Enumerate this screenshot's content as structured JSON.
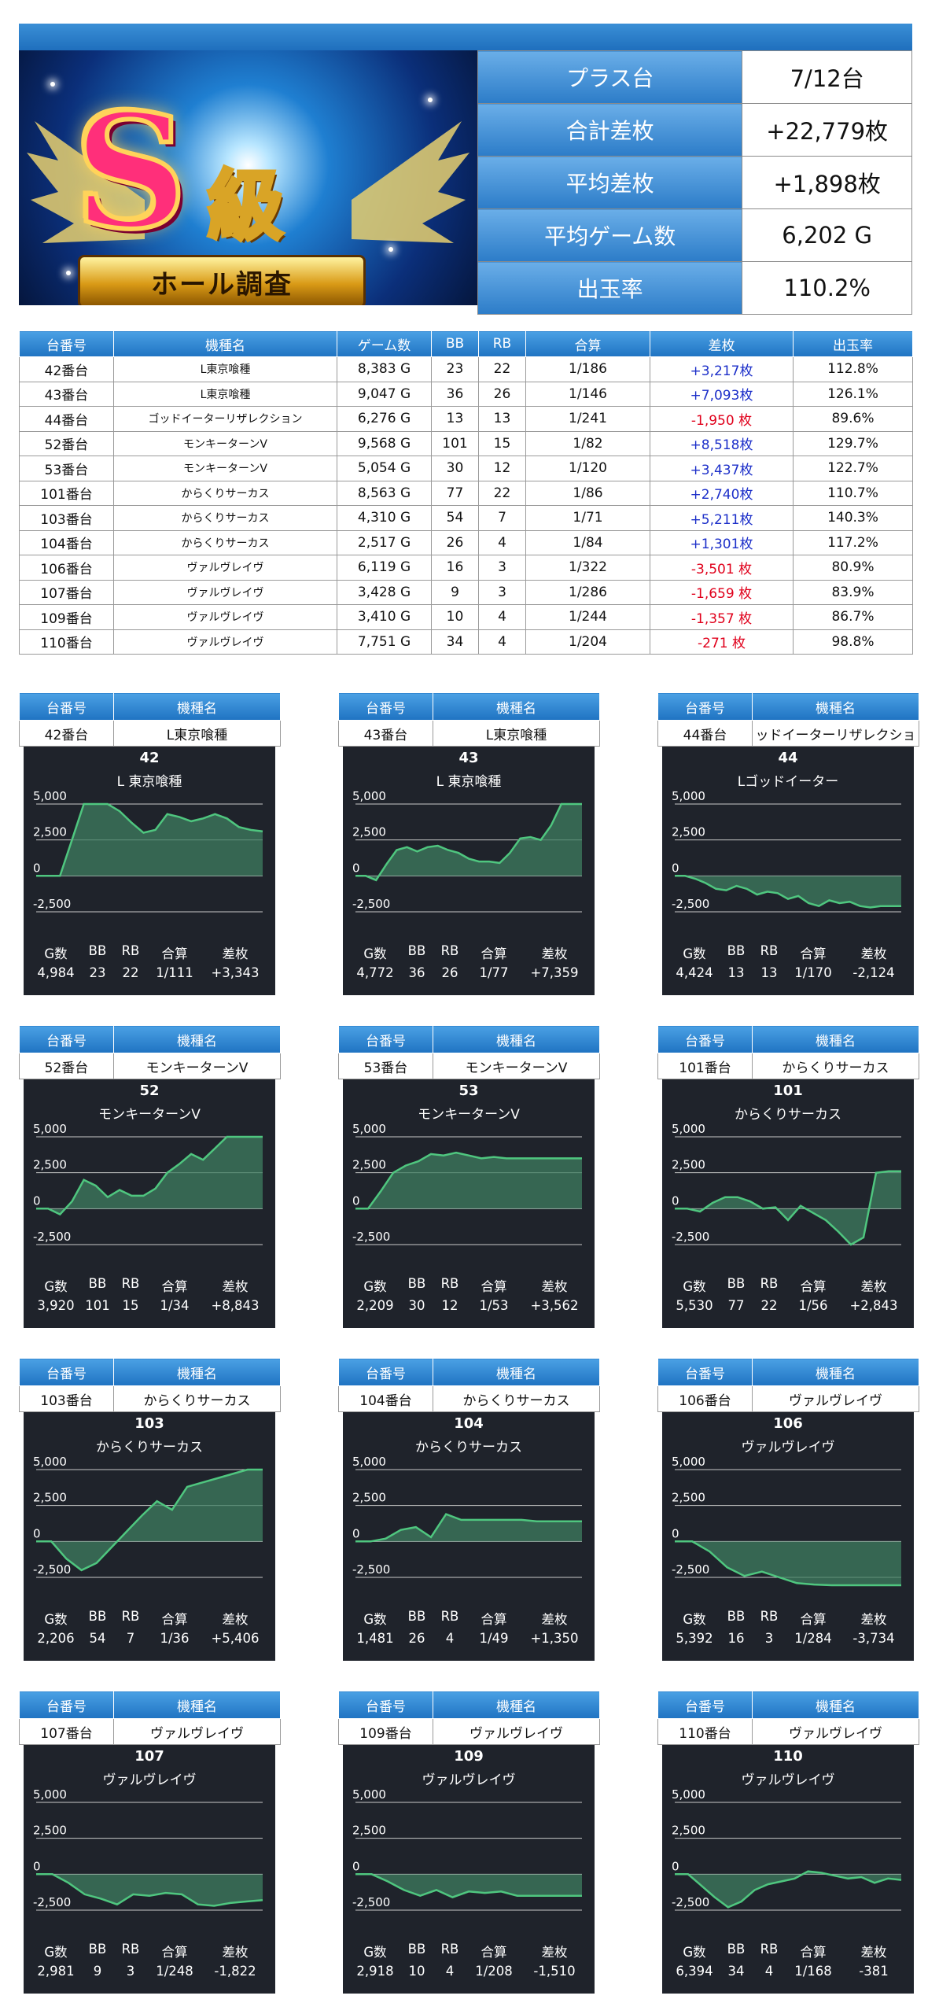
{
  "banner": {
    "main": "S",
    "kyu": "級",
    "ribbon": "ホール調査"
  },
  "summary": [
    {
      "label": "プラス台",
      "value": "7/12台"
    },
    {
      "label": "合計差枚",
      "value": "+22,779枚"
    },
    {
      "label": "平均差枚",
      "value": "+1,898枚"
    },
    {
      "label": "平均ゲーム数",
      "value": "6,202 G"
    },
    {
      "label": "出玉率",
      "value": "110.2%"
    }
  ],
  "table": {
    "headers": [
      "台番号",
      "機種名",
      "ゲーム数",
      "BB",
      "RB",
      "合算",
      "差枚",
      "出玉率"
    ],
    "rows": [
      [
        "42番台",
        "L東京喰種",
        "8,383 G",
        "23",
        "22",
        "1/186",
        "+3,217枚",
        "112.8%"
      ],
      [
        "43番台",
        "L東京喰種",
        "9,047 G",
        "36",
        "26",
        "1/146",
        "+7,093枚",
        "126.1%"
      ],
      [
        "44番台",
        "ゴッドイーターリザレクション",
        "6,276 G",
        "13",
        "13",
        "1/241",
        "-1,950 枚",
        "89.6%"
      ],
      [
        "52番台",
        "モンキーターンV",
        "9,568 G",
        "101",
        "15",
        "1/82",
        "+8,518枚",
        "129.7%"
      ],
      [
        "53番台",
        "モンキーターンV",
        "5,054 G",
        "30",
        "12",
        "1/120",
        "+3,437枚",
        "122.7%"
      ],
      [
        "101番台",
        "からくりサーカス",
        "8,563 G",
        "77",
        "22",
        "1/86",
        "+2,740枚",
        "110.7%"
      ],
      [
        "103番台",
        "からくりサーカス",
        "4,310 G",
        "54",
        "7",
        "1/71",
        "+5,211枚",
        "140.3%"
      ],
      [
        "104番台",
        "からくりサーカス",
        "2,517 G",
        "26",
        "4",
        "1/84",
        "+1,301枚",
        "117.2%"
      ],
      [
        "106番台",
        "ヴァルヴレイヴ",
        "6,119 G",
        "16",
        "3",
        "1/322",
        "-3,501 枚",
        "80.9%"
      ],
      [
        "107番台",
        "ヴァルヴレイヴ",
        "3,428 G",
        "9",
        "3",
        "1/286",
        "-1,659 枚",
        "83.9%"
      ],
      [
        "109番台",
        "ヴァルヴレイヴ",
        "3,410 G",
        "10",
        "4",
        "1/244",
        "-1,357 枚",
        "86.7%"
      ],
      [
        "110番台",
        "ヴァルヴレイヴ",
        "7,751 G",
        "34",
        "4",
        "1/204",
        "-271 枚",
        "98.8%"
      ]
    ]
  },
  "card_headers": {
    "unit": "台番号",
    "model": "機種名"
  },
  "stat_headers": [
    "G数",
    "BB",
    "RB",
    "合算",
    "差枚"
  ],
  "colors": {
    "plus": "#1c2fc9",
    "minus": "#e0001b",
    "header_blue": "#2c7cc8",
    "chart_bg": "#1f232b",
    "chart_line": "#4fc67f",
    "chart_fill": "#3f7d60"
  },
  "chart_data": [
    {
      "type": "area",
      "unit": "42番台",
      "model": "L東京喰種",
      "title": "42",
      "subtitle": "L 東京喰種",
      "ylim": [
        -2500,
        5000
      ],
      "yticks": [
        "5,000",
        "2,500",
        "0",
        "-2,500"
      ],
      "y": [
        0,
        0,
        0,
        2500,
        5000,
        5000,
        5000,
        4500,
        3700,
        3000,
        3200,
        4300,
        4100,
        3800,
        4000,
        4300,
        4000,
        3400,
        3200,
        3100
      ],
      "stats": {
        "games": "4,984",
        "bb": "23",
        "rb": "22",
        "gassan": "1/111",
        "samai": "+3,343"
      }
    },
    {
      "type": "area",
      "unit": "43番台",
      "model": "L東京喰種",
      "title": "43",
      "subtitle": "L 東京喰種",
      "ylim": [
        -2500,
        5000
      ],
      "yticks": [
        "5,000",
        "2,500",
        "0",
        "-2,500"
      ],
      "y": [
        0,
        0,
        -300,
        800,
        1800,
        2000,
        1700,
        2000,
        2100,
        1800,
        1600,
        1200,
        1000,
        1000,
        900,
        1600,
        2600,
        2700,
        2500,
        3500,
        5000,
        5000,
        5000
      ],
      "stats": {
        "games": "4,772",
        "bb": "36",
        "rb": "26",
        "gassan": "1/77",
        "samai": "+7,359"
      }
    },
    {
      "type": "area",
      "unit": "44番台",
      "model": "ッドイーターリザレクショ",
      "title": "44",
      "subtitle": "Lゴッドイーター",
      "ylim": [
        -2500,
        5000
      ],
      "yticks": [
        "5,000",
        "2,500",
        "0",
        "-2,500"
      ],
      "y": [
        0,
        0,
        -200,
        -500,
        -900,
        -1000,
        -700,
        -900,
        -1300,
        -1100,
        -1200,
        -1600,
        -1400,
        -1900,
        -2100,
        -1700,
        -1900,
        -1800,
        -2100,
        -2200,
        -2100,
        -2100,
        -2100
      ],
      "stats": {
        "games": "4,424",
        "bb": "13",
        "rb": "13",
        "gassan": "1/170",
        "samai": "-2,124"
      }
    },
    {
      "type": "area",
      "unit": "52番台",
      "model": "モンキーターンV",
      "title": "52",
      "subtitle": "モンキーターンV",
      "ylim": [
        -2500,
        5000
      ],
      "yticks": [
        "5,000",
        "2,500",
        "0",
        "-2,500"
      ],
      "y": [
        0,
        0,
        -400,
        500,
        2000,
        1600,
        800,
        1300,
        900,
        900,
        1400,
        2500,
        3100,
        3800,
        3400,
        4200,
        5000,
        5000,
        5000,
        5000
      ],
      "stats": {
        "games": "3,920",
        "bb": "101",
        "rb": "15",
        "gassan": "1/34",
        "samai": "+8,843"
      }
    },
    {
      "type": "area",
      "unit": "53番台",
      "model": "モンキーターンV",
      "title": "53",
      "subtitle": "モンキーターンV",
      "ylim": [
        -2500,
        5000
      ],
      "yticks": [
        "5,000",
        "2,500",
        "0",
        "-2,500"
      ],
      "y": [
        0,
        0,
        1200,
        2500,
        3000,
        3300,
        3800,
        3700,
        3900,
        3700,
        3500,
        3600,
        3500,
        3500,
        3500,
        3500,
        3500,
        3500,
        3500
      ],
      "stats": {
        "games": "2,209",
        "bb": "30",
        "rb": "12",
        "gassan": "1/53",
        "samai": "+3,562"
      }
    },
    {
      "type": "area",
      "unit": "101番台",
      "model": "からくりサーカス",
      "title": "101",
      "subtitle": "からくりサーカス",
      "ylim": [
        -2500,
        5000
      ],
      "yticks": [
        "5,000",
        "2,500",
        "0",
        "-2,500"
      ],
      "y": [
        0,
        0,
        -200,
        400,
        800,
        800,
        500,
        0,
        100,
        -800,
        200,
        -300,
        -800,
        -1600,
        -2500,
        -2000,
        2500,
        2600,
        2600
      ],
      "stats": {
        "games": "5,530",
        "bb": "77",
        "rb": "22",
        "gassan": "1/56",
        "samai": "+2,843"
      }
    },
    {
      "type": "area",
      "unit": "103番台",
      "model": "からくりサーカス",
      "title": "103",
      "subtitle": "からくりサーカス",
      "ylim": [
        -2500,
        5000
      ],
      "yticks": [
        "5,000",
        "2,500",
        "0",
        "-2,500"
      ],
      "y": [
        0,
        0,
        -1200,
        -2000,
        -1500,
        -400,
        700,
        1800,
        2800,
        2200,
        3800,
        4100,
        4400,
        4700,
        5000,
        5200
      ],
      "stats": {
        "games": "2,206",
        "bb": "54",
        "rb": "7",
        "gassan": "1/36",
        "samai": "+5,406"
      }
    },
    {
      "type": "area",
      "unit": "104番台",
      "model": "からくりサーカス",
      "title": "104",
      "subtitle": "からくりサーカス",
      "ylim": [
        -2500,
        5000
      ],
      "yticks": [
        "5,000",
        "2,500",
        "0",
        "-2,500"
      ],
      "y": [
        0,
        0,
        200,
        800,
        1000,
        300,
        1900,
        1500,
        1500,
        1500,
        1500,
        1500,
        1400,
        1400,
        1400,
        1400
      ],
      "stats": {
        "games": "1,481",
        "bb": "26",
        "rb": "4",
        "gassan": "1/49",
        "samai": "+1,350"
      }
    },
    {
      "type": "area",
      "unit": "106番台",
      "model": "ヴァルヴレイヴ",
      "title": "106",
      "subtitle": "ヴァルヴレイヴ",
      "ylim": [
        -2500,
        5000
      ],
      "yticks": [
        "5,000",
        "2,500",
        "0",
        "-2,500"
      ],
      "y": [
        0,
        0,
        -700,
        -1800,
        -2400,
        -2100,
        -2500,
        -2900,
        -3000,
        -3300,
        -3500,
        -3700,
        -3700,
        -3700
      ],
      "stats": {
        "games": "5,392",
        "bb": "16",
        "rb": "3",
        "gassan": "1/284",
        "samai": "-3,734"
      }
    },
    {
      "type": "area",
      "unit": "107番台",
      "model": "ヴァルヴレイヴ",
      "title": "107",
      "subtitle": "ヴァルヴレイヴ",
      "ylim": [
        -2500,
        5000
      ],
      "yticks": [
        "5,000",
        "2,500",
        "0",
        "-2,500"
      ],
      "y": [
        0,
        0,
        -600,
        -1400,
        -1700,
        -2100,
        -1400,
        -1500,
        -1300,
        -1400,
        -2100,
        -2200,
        -2000,
        -1900,
        -1800
      ],
      "stats": {
        "games": "2,981",
        "bb": "9",
        "rb": "3",
        "gassan": "1/248",
        "samai": "-1,822"
      }
    },
    {
      "type": "area",
      "unit": "109番台",
      "model": "ヴァルヴレイヴ",
      "title": "109",
      "subtitle": "ヴァルヴレイヴ",
      "ylim": [
        -2500,
        5000
      ],
      "yticks": [
        "5,000",
        "2,500",
        "0",
        "-2,500"
      ],
      "y": [
        0,
        0,
        -500,
        -1100,
        -1500,
        -1100,
        -1600,
        -1200,
        -1300,
        -1200,
        -1500,
        -1500,
        -1500,
        -1500,
        -1500
      ],
      "stats": {
        "games": "2,918",
        "bb": "10",
        "rb": "4",
        "gassan": "1/208",
        "samai": "-1,510"
      }
    },
    {
      "type": "area",
      "unit": "110番台",
      "model": "ヴァルヴレイヴ",
      "title": "110",
      "subtitle": "ヴァルヴレイヴ",
      "ylim": [
        -2500,
        5000
      ],
      "yticks": [
        "5,000",
        "2,500",
        "0",
        "-2,500"
      ],
      "y": [
        0,
        0,
        -800,
        -1600,
        -2300,
        -1900,
        -1100,
        -700,
        -500,
        -300,
        200,
        100,
        -100,
        -300,
        -200,
        -600,
        -300,
        -400
      ],
      "stats": {
        "games": "6,394",
        "bb": "34",
        "rb": "4",
        "gassan": "1/168",
        "samai": "-381"
      }
    }
  ]
}
